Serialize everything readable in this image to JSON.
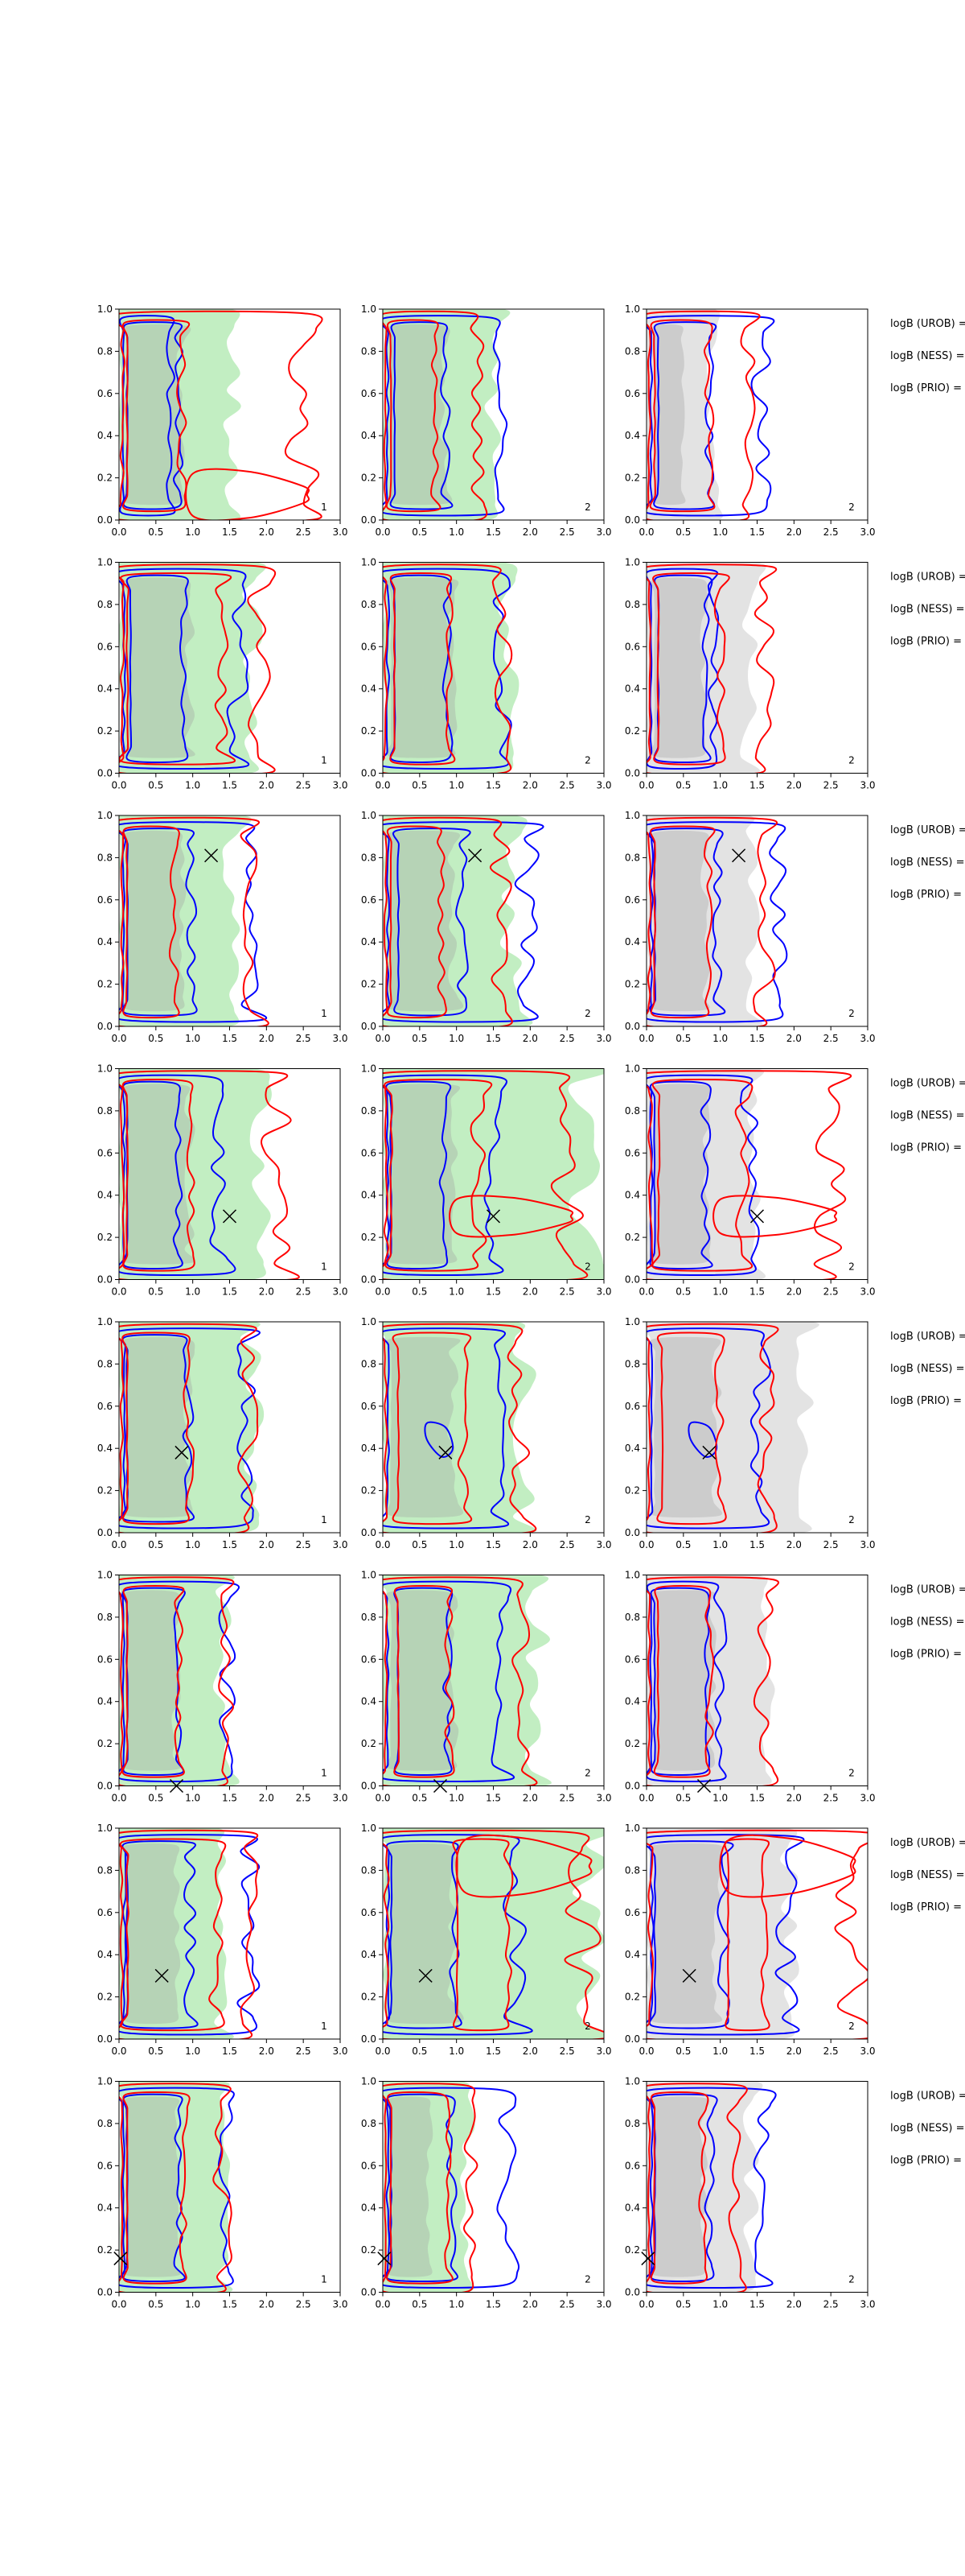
{
  "figure": {
    "description_rows": 8,
    "description_cols": 3
  },
  "chart_data": {
    "type": "contour-grid",
    "x_ticks": [
      "0.0",
      "0.5",
      "1.0",
      "1.5",
      "2.0",
      "2.5",
      "3.0"
    ],
    "y_ticks": [
      "0.0",
      "0.2",
      "0.4",
      "0.6",
      "0.8",
      "1.0"
    ],
    "xlim": [
      0,
      3
    ],
    "ylim": [
      0,
      1
    ],
    "colors": {
      "blue": "#0000ff",
      "red": "#ff0000",
      "green_fill": "#90e090",
      "gray_fill": "#c0c0c0",
      "cross": "#000000"
    },
    "panel_labels": [
      "1",
      "2",
      "2"
    ],
    "bayes_labels": [
      "logB (UROB) =",
      "logB (NESS) =",
      "logB (PRIO) ="
    ],
    "rows": [
      {
        "name": "row-1",
        "cross": null,
        "blue": [
          [
            0.1,
            0.7
          ],
          [
            0.15,
            1.55
          ],
          [
            0.15,
            1.55
          ]
        ],
        "red": [
          [
            0.1,
            0.85,
            2.5
          ],
          [
            0.1,
            0.7,
            1.3
          ],
          [
            0.1,
            0.85,
            1.4
          ]
        ],
        "fill": [
          1.55,
          1.5,
          0.9
        ]
      },
      {
        "name": "row-2",
        "cross": null,
        "blue": [
          [
            0.15,
            1.6
          ],
          [
            0.15,
            1.6
          ],
          [
            0.15,
            0.9
          ]
        ],
        "red": [
          [
            0.1,
            1.4,
            1.9
          ],
          [
            0.15,
            0.9,
            1.6
          ],
          [
            0.15,
            1.0,
            1.6
          ]
        ],
        "fill": [
          1.8,
          1.7,
          1.4
        ]
      },
      {
        "name": "row-3",
        "cross": [
          1.25,
          0.81
        ],
        "blue": [
          [
            0.1,
            1.8
          ],
          [
            0.2,
            1.95
          ],
          [
            0.1,
            1.75
          ]
        ],
        "red": [
          [
            0.1,
            0.75,
            1.8
          ],
          [
            0.1,
            0.8,
            1.6
          ],
          [
            0.1,
            0.85,
            1.6
          ]
        ],
        "fill": [
          1.55,
          1.75,
          1.45
        ]
      },
      {
        "name": "row-4",
        "cross": [
          1.5,
          0.3
        ],
        "blue": [
          [
            0.1,
            1.35
          ],
          [
            0.1,
            1.5
          ],
          [
            0.1,
            1.4
          ]
        ],
        "red": [
          [
            0.1,
            0.95,
            2.15
          ],
          [
            0.1,
            1.3,
            2.5
          ],
          [
            0.15,
            1.3,
            2.5
          ]
        ],
        "fill": [
          1.9,
          2.75,
          1.5
        ]
      },
      {
        "name": "row-5",
        "cross": [
          0.85,
          0.38
        ],
        "blue": [
          [
            0.1,
            1.7
          ],
          [
            0.1,
            1.55
          ],
          [
            0.1,
            1.55
          ]
        ],
        "red": [
          [
            0.1,
            0.95,
            1.75
          ],
          [
            0.2,
            1.1,
            1.85
          ],
          [
            0.2,
            1.0,
            1.6
          ]
        ],
        "fill": [
          1.8,
          1.9,
          2.1
        ]
      },
      {
        "name": "row-6",
        "cross": [
          0.78,
          0.0
        ],
        "blue": [
          [
            0.1,
            1.45
          ],
          [
            0.2,
            1.6
          ],
          [
            0.1,
            1.0
          ]
        ],
        "red": [
          [
            0.1,
            0.8,
            1.45
          ],
          [
            0.2,
            0.9,
            1.85
          ],
          [
            0.15,
            0.85,
            1.6
          ]
        ],
        "fill": [
          1.4,
          2.1,
          1.6
        ]
      },
      {
        "name": "row-7",
        "cross": [
          0.58,
          0.3
        ],
        "blue": [
          [
            0.1,
            1.75
          ],
          [
            0.1,
            1.8
          ],
          [
            0.1,
            1.9
          ]
        ],
        "red": [
          [
            0.1,
            1.3,
            1.75
          ],
          [
            1.0,
            1.7,
            2.7
          ],
          [
            1.1,
            1.6,
            2.8
          ]
        ],
        "fill": [
          1.4,
          2.8,
          1.9
        ]
      },
      {
        "name": "row-8",
        "cross": [
          0.02,
          0.16
        ],
        "blue": [
          [
            0.1,
            1.45
          ],
          [
            0.1,
            1.7
          ],
          [
            0.1,
            1.55
          ]
        ],
        "red": [
          [
            0.1,
            0.9,
            1.4
          ],
          [
            0.1,
            0.85,
            1.2
          ],
          [
            0.1,
            0.75,
            1.2
          ]
        ],
        "fill": [
          1.4,
          1.15,
          1.4
        ]
      }
    ]
  }
}
